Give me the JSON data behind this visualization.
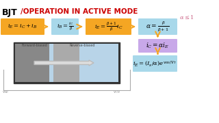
{
  "title_bjt": "BJT",
  "title_rest": "/OPERATION IN ACTIVE MODE",
  "bg_color": "#ffffff",
  "orange_color": "#F5A623",
  "light_blue_color": "#A8D8EA",
  "purple_color": "#C8A8E9",
  "box1_text": "$i_E = i_C + i_B$",
  "box2_text": "$i_B = \\frac{i_C}{\\beta}$",
  "box3_text": "$i_E = \\frac{\\beta+1}{\\beta}i_C$",
  "box4_text": "$\\alpha = \\frac{\\beta}{\\beta+1}$",
  "box5_text": "$i_C = \\alpha i_E$",
  "box6_text": "$i_E = (I_s/\\alpha)e^{v_{BE}/V_T}$",
  "alpha_note": "$\\alpha \\leq 1$",
  "arrow_color": "#F5A623"
}
